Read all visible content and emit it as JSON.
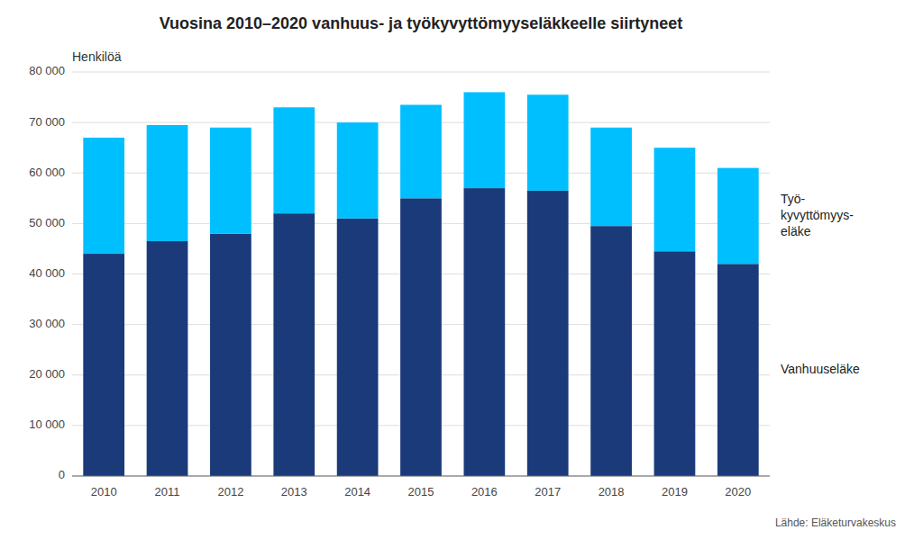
{
  "chart_data": {
    "type": "bar",
    "stacked": true,
    "title": "Vuosina 2010–2020 vanhuus- ja työkyvyttömyyseläkkeelle siirtyneet",
    "ylabel": "Henkilöä",
    "source": "Lähde: Eläketurvakeskus",
    "categories": [
      "2010",
      "2011",
      "2012",
      "2013",
      "2014",
      "2015",
      "2016",
      "2017",
      "2018",
      "2019",
      "2020"
    ],
    "series": [
      {
        "name": "Vanhuuseläke",
        "color": "#1a3a7a",
        "values": [
          44000,
          46500,
          48000,
          52000,
          51000,
          55000,
          57000,
          56500,
          49500,
          44500,
          42000
        ]
      },
      {
        "name": "Työ-\nkyvyttömyys-\neläke",
        "color": "#00bfff",
        "values": [
          23000,
          23000,
          21000,
          21000,
          19000,
          18500,
          19000,
          19000,
          19500,
          20500,
          19000
        ]
      }
    ],
    "ylim": [
      0,
      80000
    ],
    "yticks": [
      0,
      {
        "value": 10000,
        "label": "10 000"
      },
      {
        "value": 20000,
        "label": "20 000"
      },
      {
        "value": 30000,
        "label": "30 000"
      },
      {
        "value": 40000,
        "label": "40 000"
      },
      {
        "value": 50000,
        "label": "50 000"
      },
      {
        "value": 60000,
        "label": "60 000"
      },
      {
        "value": 70000,
        "label": "70 000"
      },
      {
        "value": 80000,
        "label": "80 000"
      }
    ],
    "grid": true
  }
}
